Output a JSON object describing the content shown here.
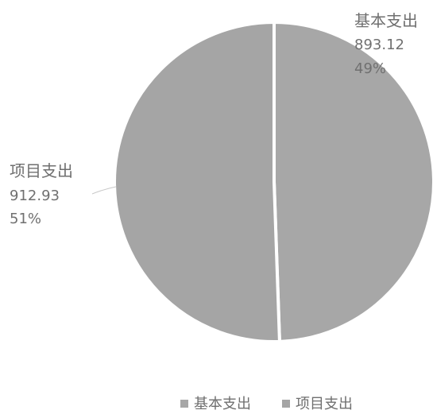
{
  "chart_data": {
    "type": "pie",
    "title": "",
    "slices": [
      {
        "label": "基本支出",
        "value": 893.12,
        "percent": "49%",
        "value_text": "893.12",
        "color": "#a7a7a7"
      },
      {
        "label": "项目支出",
        "value": 912.93,
        "percent": "51%",
        "value_text": "912.93",
        "color": "#a5a5a5"
      }
    ],
    "legend": {
      "position": "bottom",
      "items": [
        "基本支出",
        "项目支出"
      ]
    }
  }
}
